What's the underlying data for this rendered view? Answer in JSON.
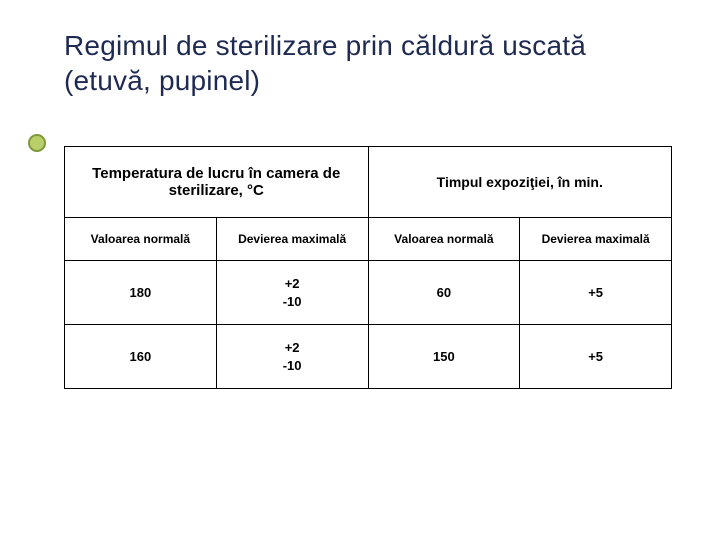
{
  "colors": {
    "title_text": "#1f2a52",
    "bullet_fill": "#b9cf6a",
    "bullet_border": "#7e9a3a",
    "table_border": "#000000",
    "text": "#000000",
    "background": "#ffffff"
  },
  "title": "Regimul de sterilizare prin căldură uscată (etuvă, pupinel)",
  "table": {
    "header_groups": [
      "Temperatura de lucru în camera de sterilizare, °C",
      "Timpul expoziţiei, în min."
    ],
    "sub_headers": [
      "Valoarea normală",
      "Devierea maximală",
      "Valoarea normală",
      "Devierea maximală"
    ],
    "rows": [
      {
        "temp_nominal": "180",
        "temp_dev_plus": "+2",
        "temp_dev_minus": "-10",
        "time_nominal": "60",
        "time_dev": "+5"
      },
      {
        "temp_nominal": "160",
        "temp_dev_plus": "+2",
        "temp_dev_minus": "-10",
        "time_nominal": "150",
        "time_dev": "+5"
      }
    ]
  }
}
